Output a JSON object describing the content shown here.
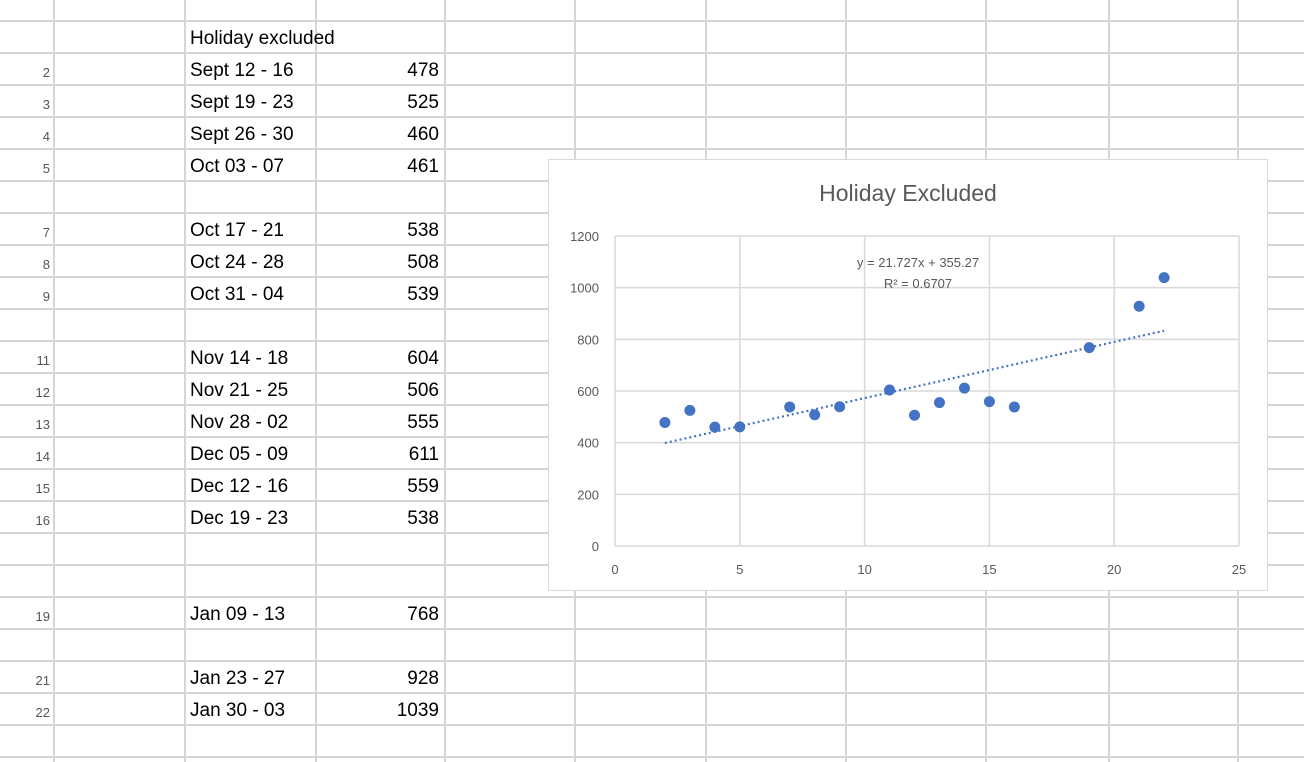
{
  "sheet": {
    "header": "Holiday excluded",
    "rows": [
      {
        "row": "2",
        "week": "Sept 12 - 16",
        "value": "478"
      },
      {
        "row": "3",
        "week": "Sept 19 - 23",
        "value": "525"
      },
      {
        "row": "4",
        "week": "Sept 26 - 30",
        "value": "460"
      },
      {
        "row": "5",
        "week": "Oct 03 - 07",
        "value": "461"
      },
      {
        "row": "",
        "week": "",
        "value": ""
      },
      {
        "row": "7",
        "week": "Oct 17 - 21",
        "value": "538"
      },
      {
        "row": "8",
        "week": "Oct 24 - 28",
        "value": "508"
      },
      {
        "row": "9",
        "week": "Oct 31 - 04",
        "value": "539"
      },
      {
        "row": "",
        "week": "",
        "value": ""
      },
      {
        "row": "11",
        "week": "Nov 14 - 18",
        "value": "604"
      },
      {
        "row": "12",
        "week": "Nov 21 - 25",
        "value": "506"
      },
      {
        "row": "13",
        "week": "Nov 28 - 02",
        "value": "555"
      },
      {
        "row": "14",
        "week": "Dec 05 - 09",
        "value": "611"
      },
      {
        "row": "15",
        "week": "Dec 12 - 16",
        "value": "559"
      },
      {
        "row": "16",
        "week": "Dec 19 - 23",
        "value": "538"
      },
      {
        "row": "",
        "week": "",
        "value": ""
      },
      {
        "row": "",
        "week": "",
        "value": ""
      },
      {
        "row": "19",
        "week": "Jan 09 - 13",
        "value": "768"
      },
      {
        "row": "",
        "week": "",
        "value": ""
      },
      {
        "row": "21",
        "week": "Jan 23 - 27",
        "value": "928"
      },
      {
        "row": "22",
        "week": "Jan 30 - 03",
        "value": "1039"
      }
    ]
  },
  "chart_data": {
    "type": "scatter",
    "title": "Holiday Excluded",
    "xlabel": "",
    "ylabel": "",
    "xlim": [
      0,
      25
    ],
    "ylim": [
      0,
      1200
    ],
    "xticks": [
      0,
      5,
      10,
      15,
      20,
      25
    ],
    "yticks": [
      0,
      200,
      400,
      600,
      800,
      1000,
      1200
    ],
    "grid": true,
    "legend": "none",
    "series": [
      {
        "marker_color": "#4472c4",
        "points": [
          {
            "x": 2,
            "y": 478
          },
          {
            "x": 3,
            "y": 525
          },
          {
            "x": 4,
            "y": 460
          },
          {
            "x": 5,
            "y": 461
          },
          {
            "x": 7,
            "y": 538
          },
          {
            "x": 8,
            "y": 508
          },
          {
            "x": 9,
            "y": 539
          },
          {
            "x": 11,
            "y": 604
          },
          {
            "x": 12,
            "y": 506
          },
          {
            "x": 13,
            "y": 555
          },
          {
            "x": 14,
            "y": 611
          },
          {
            "x": 15,
            "y": 559
          },
          {
            "x": 16,
            "y": 538
          },
          {
            "x": 19,
            "y": 768
          },
          {
            "x": 21,
            "y": 928
          },
          {
            "x": 22,
            "y": 1039
          }
        ]
      }
    ],
    "trendline": {
      "type": "linear",
      "slope": 21.727,
      "intercept": 355.27,
      "x_range": [
        2,
        22
      ],
      "style": "dotted",
      "color": "#4472c4",
      "equation_label": "y = 21.727x + 355.27",
      "r2_label": "R² = 0.6707"
    }
  }
}
